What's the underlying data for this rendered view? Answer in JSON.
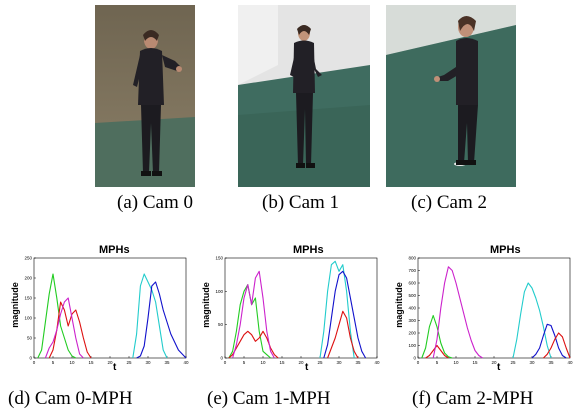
{
  "figure": {
    "photos": [
      {
        "caption": "(a)  Cam 0"
      },
      {
        "caption": "(b)  Cam 1"
      },
      {
        "caption": "(c)  Cam 2"
      }
    ],
    "plots": [
      {
        "caption": "(d)  Cam 0-MPH"
      },
      {
        "caption": "(e)  Cam 1-MPH"
      },
      {
        "caption": "(f)  Cam 2-MPH"
      }
    ]
  },
  "colors": {
    "green": "#22cc22",
    "red": "#dd1111",
    "magenta": "#cc22cc",
    "cyan": "#22cccc",
    "blue": "#1111cc"
  },
  "chart_data": [
    {
      "type": "line",
      "title": "MPHs",
      "xlabel": "t",
      "ylabel": "magnitude",
      "xlim": [
        0,
        40
      ],
      "ylim": [
        0,
        250
      ],
      "xticks": [
        "0",
        "5",
        "10",
        "15",
        "20",
        "25",
        "30",
        "35",
        "40"
      ],
      "yticks": [
        "0",
        "50",
        "100",
        "150",
        "200",
        "250"
      ],
      "series": [
        {
          "color": "green",
          "x": [
            1,
            2,
            3,
            4,
            5,
            6,
            7,
            8,
            9,
            10,
            11
          ],
          "values": [
            0,
            20,
            90,
            160,
            210,
            150,
            80,
            50,
            20,
            5,
            0
          ]
        },
        {
          "color": "red",
          "x": [
            4,
            5,
            6,
            7,
            8,
            9,
            10,
            11,
            12,
            13,
            14,
            15
          ],
          "values": [
            0,
            20,
            70,
            140,
            120,
            80,
            110,
            120,
            90,
            50,
            15,
            0
          ]
        },
        {
          "color": "magenta",
          "x": [
            3,
            4,
            5,
            6,
            7,
            8,
            9,
            10,
            11,
            12,
            13
          ],
          "values": [
            0,
            25,
            40,
            70,
            110,
            140,
            150,
            100,
            50,
            10,
            0
          ]
        },
        {
          "color": "cyan",
          "x": [
            26,
            27,
            28,
            29,
            30,
            31,
            32,
            33,
            34,
            35
          ],
          "values": [
            0,
            60,
            180,
            210,
            190,
            170,
            140,
            80,
            20,
            0
          ]
        },
        {
          "color": "blue",
          "x": [
            27,
            28,
            29,
            30,
            31,
            32,
            33,
            34,
            35,
            36,
            37,
            38,
            39,
            40
          ],
          "values": [
            0,
            5,
            30,
            100,
            180,
            190,
            160,
            120,
            90,
            60,
            40,
            20,
            10,
            0
          ]
        }
      ]
    },
    {
      "type": "line",
      "title": "MPHs",
      "xlabel": "t",
      "ylabel": "magnitude",
      "xlim": [
        0,
        40
      ],
      "ylim": [
        0,
        150
      ],
      "xticks": [
        "0",
        "5",
        "10",
        "15",
        "20",
        "25",
        "30",
        "35",
        "40"
      ],
      "yticks": [
        "0",
        "50",
        "100",
        "150"
      ],
      "series": [
        {
          "color": "green",
          "x": [
            1,
            2,
            3,
            4,
            5,
            6,
            7,
            8,
            9,
            10,
            11,
            12
          ],
          "values": [
            0,
            10,
            40,
            80,
            100,
            110,
            80,
            90,
            40,
            10,
            5,
            0
          ]
        },
        {
          "color": "red",
          "x": [
            1,
            2,
            3,
            4,
            5,
            6,
            7,
            8,
            9,
            10,
            11,
            12,
            13,
            14
          ],
          "values": [
            0,
            5,
            15,
            25,
            35,
            40,
            35,
            25,
            30,
            40,
            30,
            15,
            5,
            0
          ]
        },
        {
          "color": "magenta",
          "x": [
            2,
            3,
            4,
            5,
            6,
            7,
            8,
            9,
            10,
            11,
            12,
            13
          ],
          "values": [
            0,
            20,
            50,
            90,
            110,
            80,
            120,
            130,
            90,
            40,
            10,
            0
          ]
        },
        {
          "color": "cyan",
          "x": [
            25,
            26,
            27,
            28,
            29,
            30,
            31,
            32,
            33,
            34
          ],
          "values": [
            0,
            40,
            100,
            140,
            145,
            130,
            140,
            100,
            40,
            0
          ]
        },
        {
          "color": "blue",
          "x": [
            26,
            27,
            28,
            29,
            30,
            31,
            32,
            33,
            34,
            35,
            36,
            37
          ],
          "values": [
            0,
            20,
            60,
            100,
            125,
            130,
            120,
            90,
            60,
            30,
            10,
            0
          ]
        },
        {
          "color": "red",
          "x": [
            27,
            28,
            29,
            30,
            31,
            32,
            33,
            34,
            35
          ],
          "values": [
            0,
            15,
            30,
            50,
            70,
            60,
            30,
            10,
            0
          ]
        }
      ]
    },
    {
      "type": "line",
      "title": "MPHs",
      "xlabel": "t",
      "ylabel": "magnitude",
      "xlim": [
        0,
        40
      ],
      "ylim": [
        0,
        800
      ],
      "xticks": [
        "0",
        "5",
        "10",
        "15",
        "20",
        "25",
        "30",
        "35",
        "40"
      ],
      "yticks": [
        "0",
        "100",
        "200",
        "300",
        "400",
        "500",
        "600",
        "700",
        "800"
      ],
      "series": [
        {
          "color": "green",
          "x": [
            1,
            2,
            3,
            4,
            5,
            6,
            7,
            8,
            9
          ],
          "values": [
            0,
            80,
            250,
            340,
            250,
            120,
            40,
            10,
            0
          ]
        },
        {
          "color": "red",
          "x": [
            2,
            3,
            4,
            5,
            6,
            7,
            8
          ],
          "values": [
            0,
            20,
            60,
            100,
            60,
            20,
            0
          ]
        },
        {
          "color": "magenta",
          "x": [
            4,
            5,
            6,
            7,
            8,
            9,
            10,
            11,
            12,
            13,
            14,
            15,
            16,
            17
          ],
          "values": [
            0,
            150,
            400,
            600,
            730,
            700,
            600,
            480,
            360,
            240,
            140,
            60,
            20,
            0
          ]
        },
        {
          "color": "cyan",
          "x": [
            25,
            26,
            27,
            28,
            29,
            30,
            31,
            32,
            33,
            34,
            35
          ],
          "values": [
            0,
            150,
            350,
            530,
            600,
            560,
            480,
            380,
            250,
            100,
            0
          ]
        },
        {
          "color": "blue",
          "x": [
            30,
            31,
            32,
            33,
            34,
            35,
            36,
            37,
            38,
            39
          ],
          "values": [
            0,
            30,
            80,
            180,
            270,
            260,
            180,
            80,
            20,
            0
          ]
        },
        {
          "color": "red",
          "x": [
            33,
            34,
            35,
            36,
            37,
            38,
            39,
            40
          ],
          "values": [
            0,
            30,
            80,
            150,
            200,
            170,
            80,
            0
          ]
        }
      ]
    }
  ]
}
